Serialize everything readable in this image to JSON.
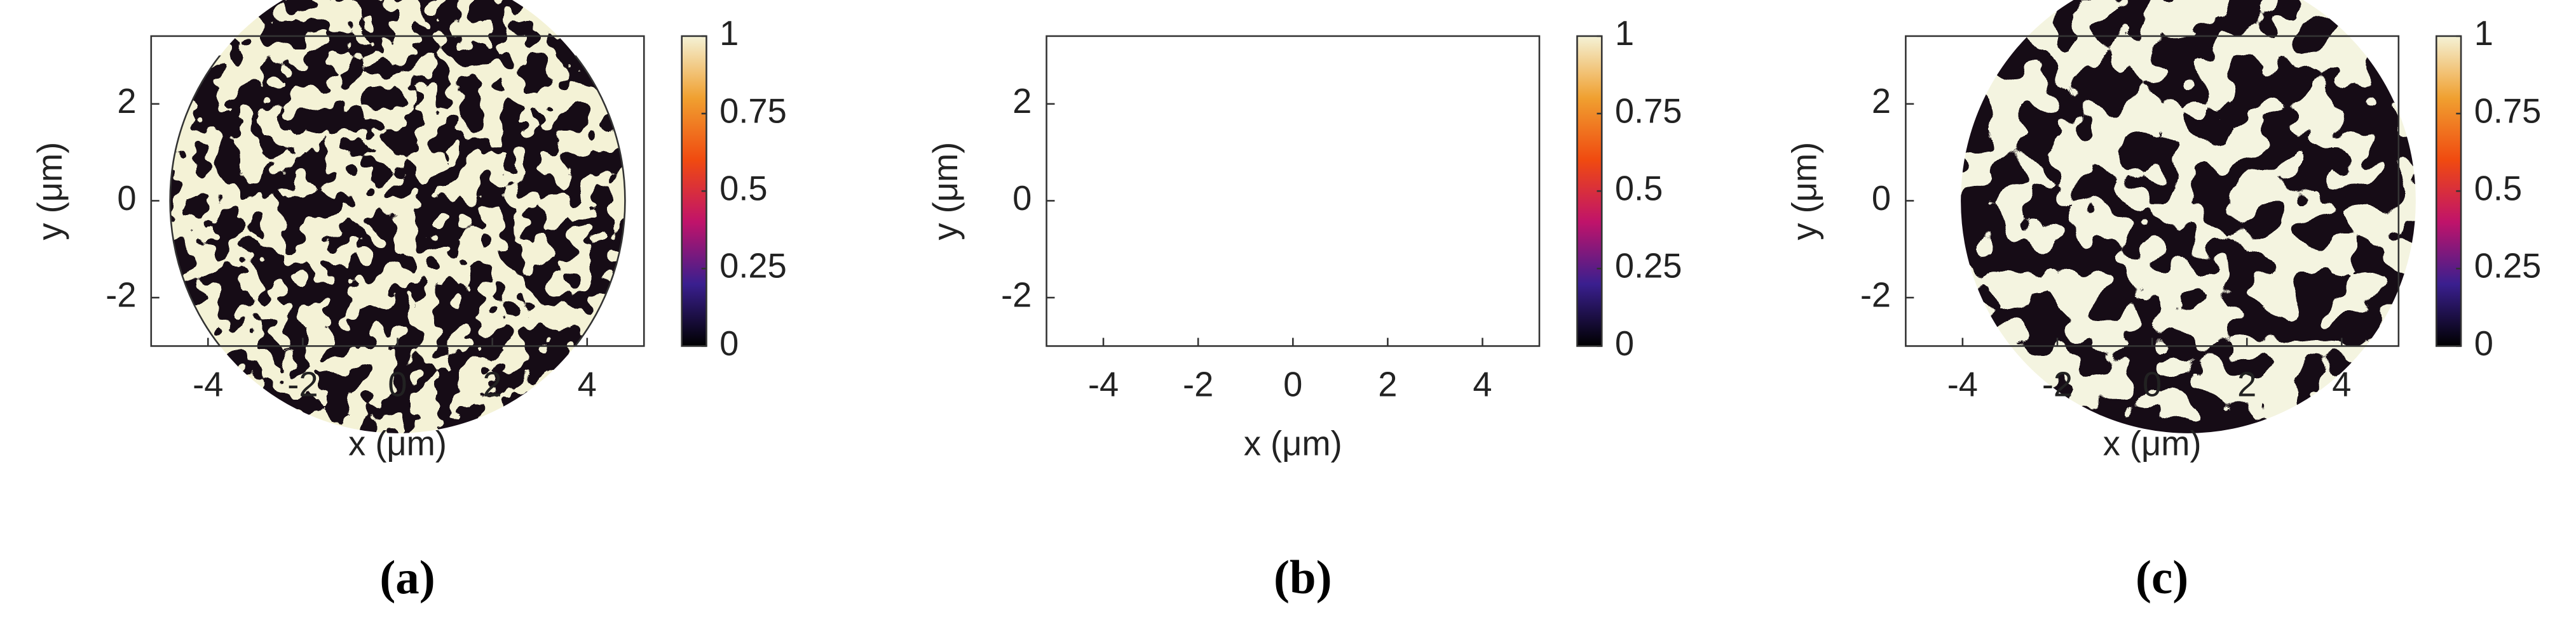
{
  "chart_data": [
    {
      "type": "heatmap",
      "xlabel": "x (μm)",
      "ylabel": "y (μm)",
      "caption": "(a)",
      "xlim": [
        -5.2,
        5.2
      ],
      "ylim": [
        -3,
        3.4
      ],
      "xticks": [
        -4,
        -2,
        0,
        2,
        4
      ],
      "yticks": [
        -2,
        0,
        2
      ],
      "clim": [
        0,
        1
      ],
      "cticks": [
        0,
        0.25,
        0.5,
        0.75,
        1
      ],
      "colormap": [
        "#000000",
        "#3a1f8f",
        "#c0136a",
        "#f04a10",
        "#f0a030",
        "#f4f2d6"
      ]
    },
    {
      "type": "heatmap",
      "xlabel": "x (μm)",
      "ylabel": "y (μm)",
      "caption": "(b)",
      "xlim": [
        -5.2,
        5.2
      ],
      "ylim": [
        -3,
        3.4
      ],
      "xticks": [
        -4,
        -2,
        0,
        2,
        4
      ],
      "yticks": [
        -2,
        0,
        2
      ],
      "clim": [
        0,
        1
      ],
      "cticks": [
        0,
        0.25,
        0.5,
        0.75,
        1
      ],
      "colormap": [
        "#000000",
        "#3a1f8f",
        "#c0136a",
        "#f04a10",
        "#f0a030",
        "#f4f2d6"
      ]
    },
    {
      "type": "heatmap",
      "xlabel": "x (μm)",
      "ylabel": "y (μm)",
      "caption": "(c)",
      "xlim": [
        -5.2,
        5.2
      ],
      "ylim": [
        -3,
        3.4
      ],
      "xticks": [
        -4,
        -2,
        0,
        2,
        4
      ],
      "yticks": [
        -2,
        0,
        2
      ],
      "clim": [
        0,
        1
      ],
      "cticks": [
        0,
        0.25,
        0.5,
        0.75,
        1
      ],
      "colormap": [
        "#000000",
        "#3a1f8f",
        "#c0136a",
        "#f04a10",
        "#f0a030",
        "#f4f2d6"
      ]
    }
  ]
}
